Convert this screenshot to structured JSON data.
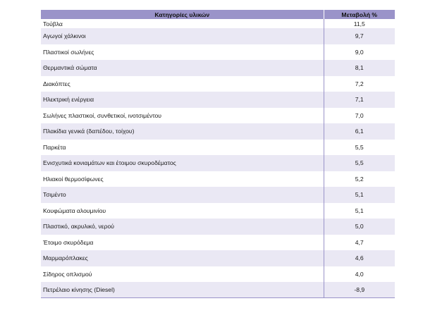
{
  "table": {
    "headers": {
      "category": "Κατηγορίες υλικών",
      "change": "Μεταβολή %"
    },
    "rows": [
      {
        "category": "Τούβλα",
        "change": "11,5"
      },
      {
        "category": "Αγωγοί χάλκινοι",
        "change": "9,7"
      },
      {
        "category": "Πλαστικοί σωλήνες",
        "change": "9,0"
      },
      {
        "category": "Θερμαντικά σώματα",
        "change": "8,1"
      },
      {
        "category": "Διακόπτες",
        "change": "7,2"
      },
      {
        "category": "Ηλεκτρική ενέργεια",
        "change": "7,1"
      },
      {
        "category": "Σωλήνες πλαστικοί, συνθετικοί, ινοτσιμέντου",
        "change": "7,0"
      },
      {
        "category": "Πλακίδια γενικά (δαπέδου, τοίχου)",
        "change": "6,1"
      },
      {
        "category": "Παρκέτα",
        "change": "5,5"
      },
      {
        "category": "Ενισχυτικά κονιαμάτων και έτοιμου σκυροδέματος",
        "change": "5,5"
      },
      {
        "category": "Ηλιακοί θερμοσίφωνες",
        "change": "5,2"
      },
      {
        "category": "Τσιμέντο",
        "change": "5,1"
      },
      {
        "category": "Κουφώματα αλουμινίου",
        "change": "5,1"
      },
      {
        "category": "Πλαστικό, ακρυλικό, νερού",
        "change": "5,0"
      },
      {
        "category": "Έτοιμο σκυρόδεμα",
        "change": "4,7"
      },
      {
        "category": "Μαρμαρόπλακες",
        "change": "4,6"
      },
      {
        "category": "Σίδηρος οπλισμού",
        "change": "4,0"
      },
      {
        "category": "Πετρέλαιο κίνησης (Diesel)",
        "change": "-8,9"
      }
    ]
  },
  "colors": {
    "header_background": "#9a93c9",
    "stripe_background": "#eae8f4"
  }
}
